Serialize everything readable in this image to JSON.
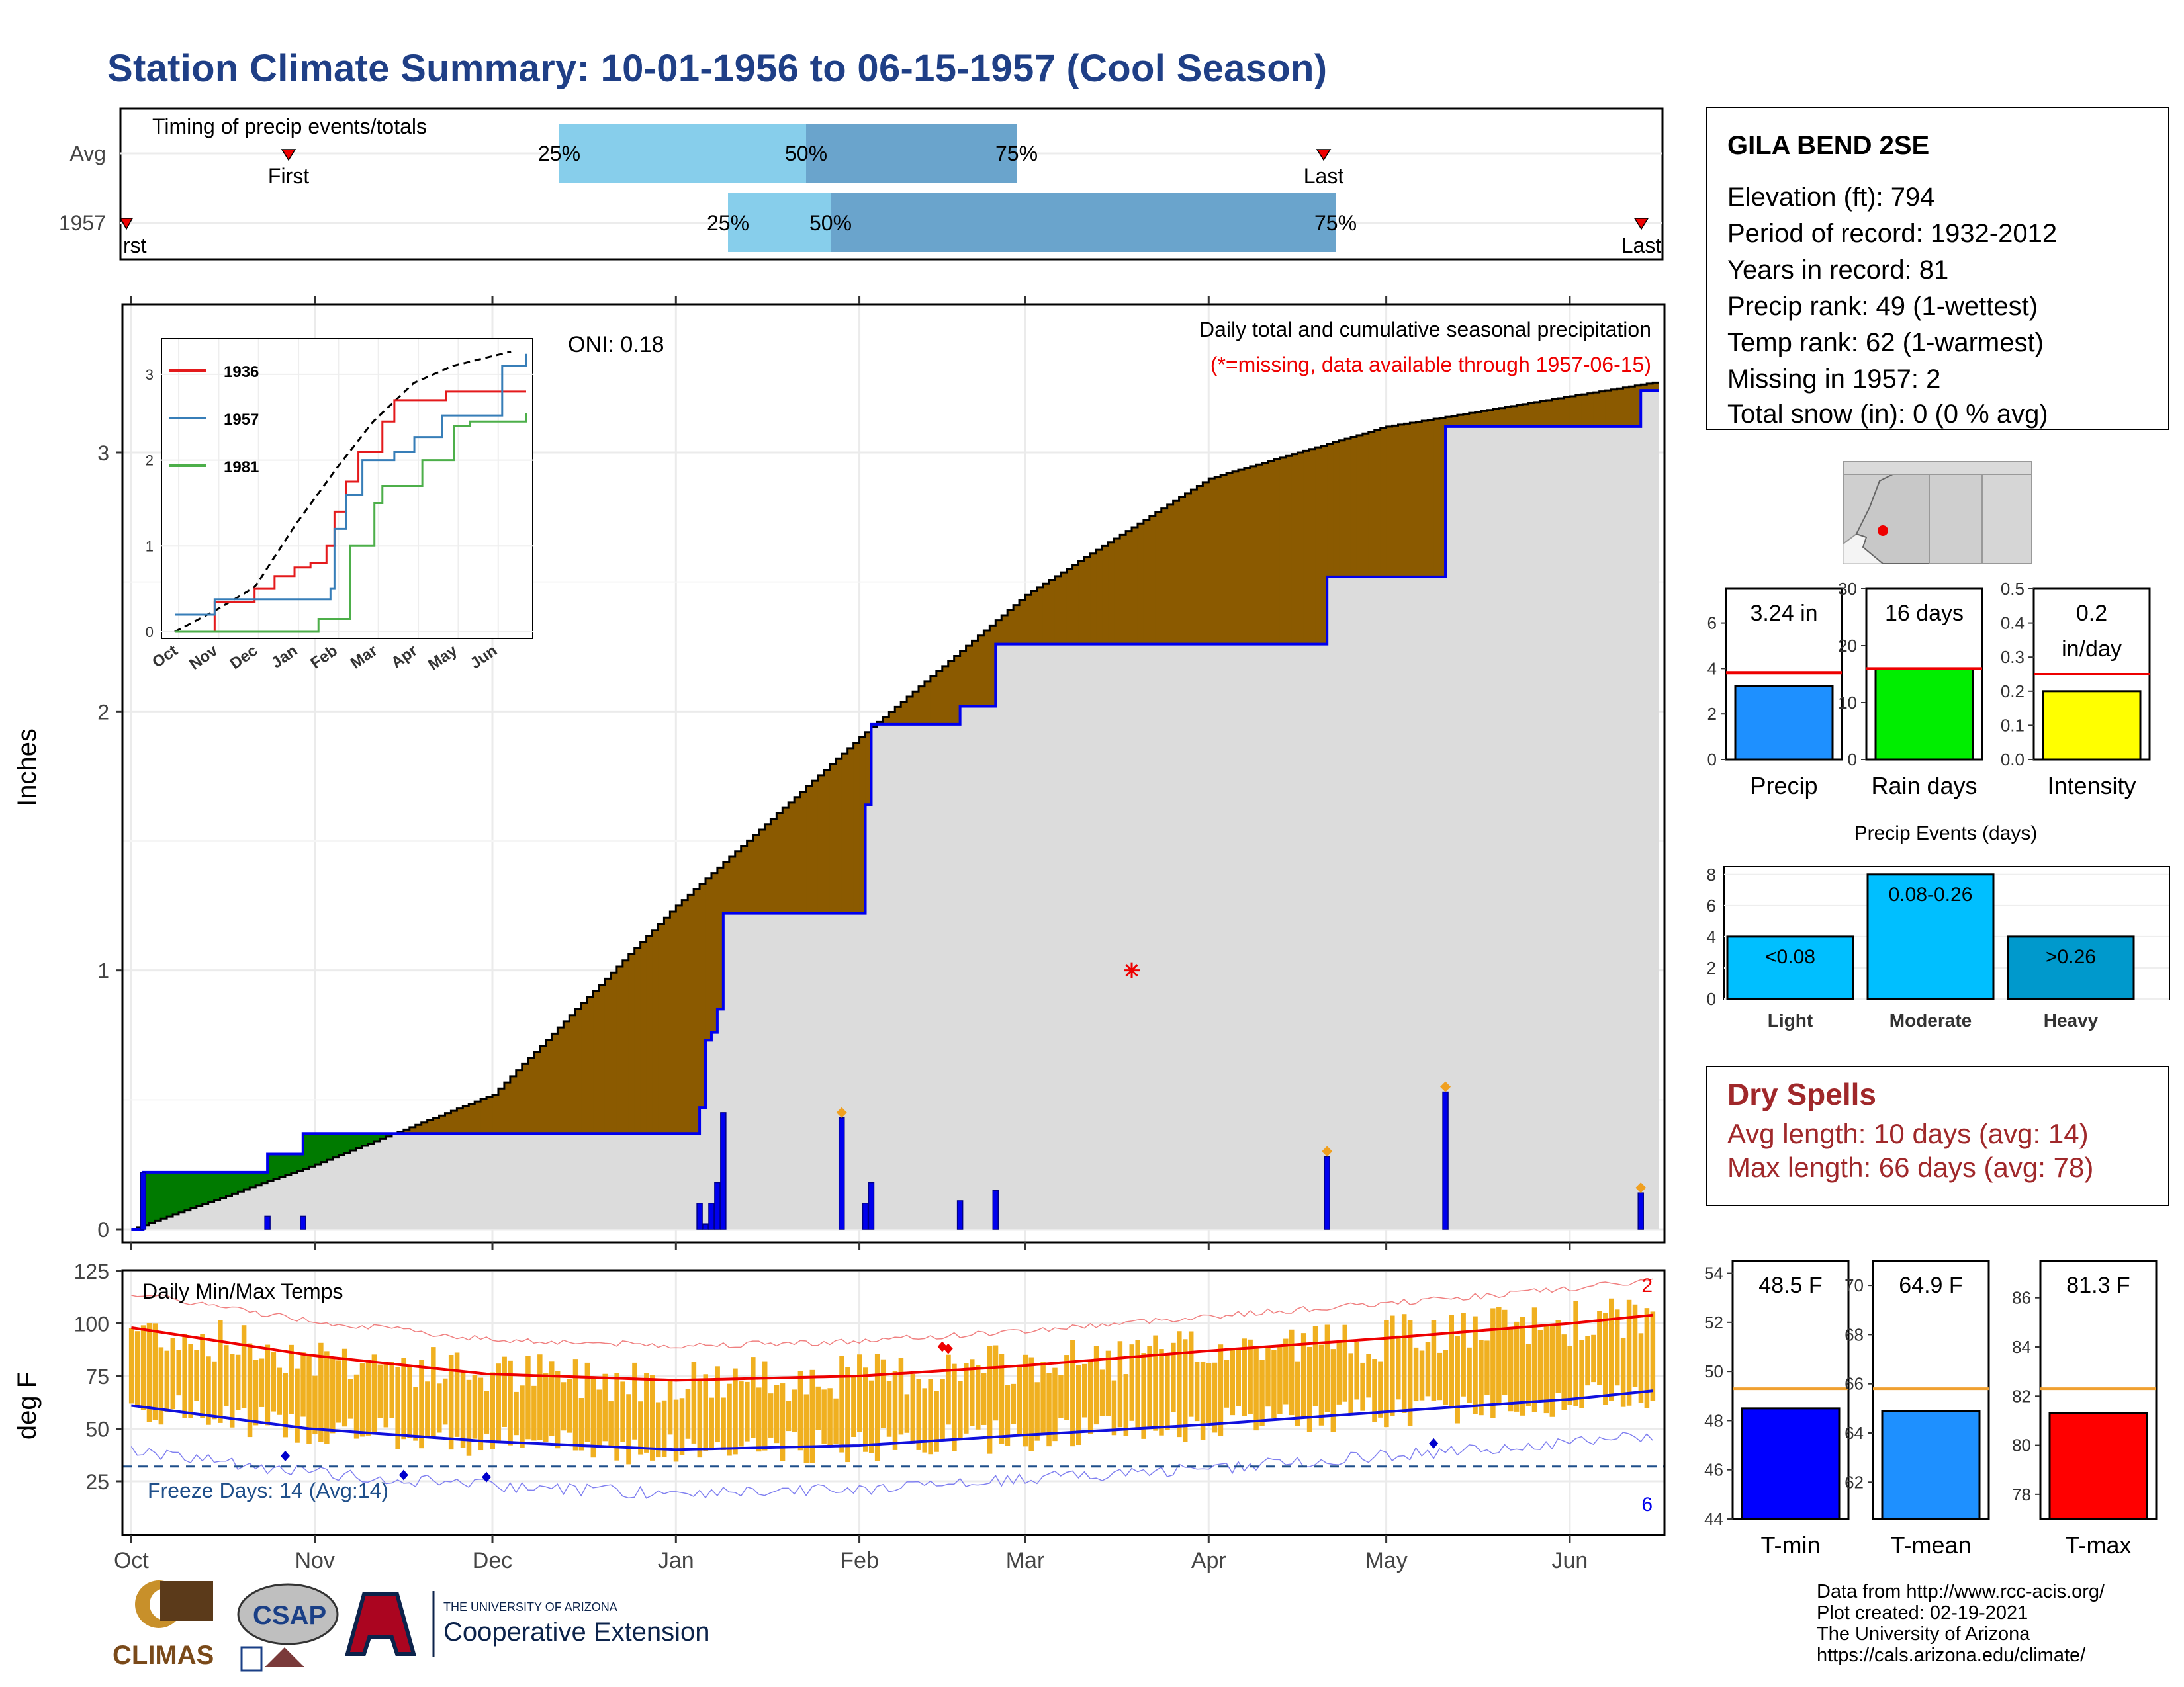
{
  "title": "Station Climate Summary: 10-01-1956 to 06-15-1957 (Cool Season)",
  "colors": {
    "title": "#1f3f86",
    "observed_fill": "#8b5a00",
    "surplus_fill": "#007a00",
    "avg_fill": "#dcdcdc",
    "observed_line": "#0000ee",
    "tmax": "#ee0000",
    "tmin": "#1010dd",
    "range_bar": "#f0b020",
    "missing": "#ee0000"
  },
  "station": {
    "name": "GILA BEND 2SE",
    "lines": [
      "Elevation (ft): 794",
      "Period of record: 1932-2012",
      "Years in record: 81",
      "Precip rank: 49 (1-wettest)",
      "Temp rank: 62 (1-warmest)",
      "Missing in 1957: 2",
      "Total snow (in): 0 (0 % avg)"
    ],
    "map_icon": "arizona-map-with-station-dot"
  },
  "timing": {
    "title": "Timing of precip events/totals",
    "rows": [
      "Avg",
      "1957"
    ],
    "pct_labels": [
      "25%",
      "50%",
      "75%"
    ],
    "first_label": "First",
    "last_label": "Last",
    "first_label_clipped": "rst"
  },
  "main_chart": {
    "ylabel": "Inches",
    "oni": "ONI: 0.18",
    "title": "Daily total and cumulative seasonal precipitation",
    "missing_note": "(*=missing, data available through 1957-06-15)",
    "yticks": [
      "0",
      "1",
      "2",
      "3"
    ],
    "month_ticks": [
      "Oct",
      "Nov",
      "Dec",
      "Jan",
      "Feb",
      "Mar",
      "Apr",
      "May",
      "Jun"
    ]
  },
  "inset": {
    "legend": [
      "1936",
      "1957",
      "1981"
    ],
    "yticks": [
      "0",
      "1",
      "2",
      "3"
    ],
    "xticks": [
      "Oct",
      "Nov",
      "Dec",
      "Jan",
      "Feb",
      "Mar",
      "Apr",
      "May",
      "Jun"
    ]
  },
  "bar_panels": {
    "precip": {
      "label": "Precip",
      "value_text": "3.24 in"
    },
    "rain_days": {
      "label": "Rain days",
      "value_text": "16 days"
    },
    "intensity": {
      "label": "Intensity",
      "value_text_1": "0.2",
      "value_text_2": "in/day"
    }
  },
  "events": {
    "title": "Precip Events (days)",
    "bars": [
      {
        "label": "Light",
        "range": "<0.08"
      },
      {
        "label": "Moderate",
        "range": "0.08-0.26"
      },
      {
        "label": "Heavy",
        "range": ">0.26"
      }
    ]
  },
  "dry_spells": {
    "title": "Dry Spells",
    "avg_line": "Avg length: 10 days (avg: 14)",
    "max_line": "Max length: 66 days (avg: 78)"
  },
  "temp_chart": {
    "title": "Daily Min/Max Temps",
    "ylabel": "deg F",
    "freeze": "Freeze Days: 14 (Avg:14)",
    "record_high_count": "2",
    "record_low_count": "6",
    "yticks": [
      "25",
      "50",
      "75",
      "100",
      "125"
    ]
  },
  "temp_panels": {
    "tmin": {
      "label": "T-min",
      "value_text": "48.5 F"
    },
    "tmean": {
      "label": "T-mean",
      "value_text": "64.9 F"
    },
    "tmax": {
      "label": "T-max",
      "value_text": "81.3 F"
    }
  },
  "credits": {
    "line1": "Data from http://www.rcc-acis.org/",
    "line2": "Plot created: 02-19-2021",
    "line3": "The University of Arizona",
    "line4": "https://cals.arizona.edu/climate/"
  },
  "logos": {
    "climas": "CLIMAS",
    "csap": "CSAP",
    "ua_line1": "THE UNIVERSITY OF ARIZONA",
    "ua_line2": "Cooperative Extension"
  },
  "chart_data": [
    {
      "type": "area",
      "title": "Daily total and cumulative seasonal precipitation",
      "ylabel": "Inches",
      "ylim": [
        0,
        3.5
      ],
      "xlim": [
        "1956-10-01",
        "1957-06-15"
      ],
      "series": [
        {
          "name": "1957",
          "x": [
            "1956-10-01",
            "1956-10-03",
            "1956-10-24",
            "1956-10-30",
            "1957-01-01",
            "1957-01-05",
            "1957-01-06",
            "1957-01-07",
            "1957-01-08",
            "1957-01-09",
            "1957-01-29",
            "1957-02-02",
            "1957-02-03",
            "1957-02-18",
            "1957-02-24",
            "1957-04-21",
            "1957-05-11",
            "1957-06-13",
            "1957-06-15"
          ],
          "values": [
            0.0,
            0.22,
            0.29,
            0.37,
            0.37,
            0.47,
            0.73,
            0.76,
            0.85,
            1.22,
            1.22,
            1.64,
            1.95,
            2.02,
            2.26,
            2.52,
            3.1,
            3.24,
            3.24
          ]
        },
        {
          "name": "Avg",
          "x": [
            "1956-10-01",
            "1956-11-01",
            "1956-12-01",
            "1957-01-01",
            "1957-02-01",
            "1957-03-01",
            "1957-04-01",
            "1957-05-01",
            "1957-06-15"
          ],
          "values": [
            0.0,
            0.25,
            0.52,
            1.25,
            1.9,
            2.45,
            2.9,
            3.1,
            3.27
          ]
        }
      ],
      "daily_bars": {
        "x": [
          "1956-10-03",
          "1956-10-24",
          "1956-10-30",
          "1957-01-05",
          "1957-01-06",
          "1957-01-07",
          "1957-01-08",
          "1957-01-09",
          "1957-01-29",
          "1957-02-02",
          "1957-02-03",
          "1957-02-18",
          "1957-02-24",
          "1957-04-21",
          "1957-05-11",
          "1957-06-13"
        ],
        "values": [
          0.22,
          0.05,
          0.05,
          0.1,
          0.02,
          0.1,
          0.18,
          0.45,
          0.43,
          0.1,
          0.18,
          0.11,
          0.15,
          0.28,
          0.53,
          0.14
        ]
      },
      "missing_marker": "1957-03-19"
    },
    {
      "type": "line",
      "title": "inset cumulative comparison",
      "ylim": [
        0,
        3.3
      ],
      "series": [
        {
          "name": "1936",
          "x": [
            0,
            1,
            2,
            2.5,
            3,
            3.4,
            3.8,
            4,
            4.3,
            4.6,
            5,
            5.2,
            5.5,
            6.2,
            6.8,
            8.8
          ],
          "values": [
            0,
            0.35,
            0.5,
            0.65,
            0.75,
            0.8,
            1.0,
            1.4,
            1.75,
            2.1,
            2.1,
            2.45,
            2.7,
            2.7,
            2.8,
            2.8
          ]
        },
        {
          "name": "1957",
          "x": [
            0,
            1.0,
            3.2,
            3.9,
            4.0,
            4.3,
            4.7,
            5.0,
            5.5,
            6.0,
            6.7,
            7.5,
            8.2,
            8.8
          ],
          "values": [
            0.2,
            0.38,
            0.38,
            0.5,
            1.2,
            1.6,
            2.0,
            2.0,
            2.1,
            2.27,
            2.52,
            2.52,
            3.1,
            3.24
          ]
        },
        {
          "name": "1981",
          "x": [
            0,
            3.5,
            3.6,
            4.2,
            4.4,
            4.6,
            5.0,
            5.2,
            5.9,
            6.2,
            6.5,
            7.0,
            7.4,
            8.2,
            8.8
          ],
          "values": [
            0,
            0,
            0.15,
            0.15,
            1.0,
            1.0,
            1.5,
            1.7,
            1.7,
            2.0,
            2.0,
            2.4,
            2.45,
            2.45,
            2.55
          ]
        }
      ]
    },
    {
      "type": "bar",
      "categories": [
        "Precip"
      ],
      "values": [
        3.24
      ],
      "avg": [
        3.8
      ],
      "ylim": [
        0,
        7.5
      ],
      "yticks": [
        "0",
        "2",
        "4",
        "6"
      ]
    },
    {
      "type": "bar",
      "categories": [
        "Rain days"
      ],
      "values": [
        16
      ],
      "avg": [
        16
      ],
      "ylim": [
        0,
        30
      ],
      "yticks": [
        "0",
        "10",
        "20",
        "30"
      ]
    },
    {
      "type": "bar",
      "categories": [
        "Intensity"
      ],
      "values": [
        0.2
      ],
      "avg": [
        0.25
      ],
      "ylim": [
        0,
        0.5
      ],
      "yticks": [
        "0.0",
        "0.1",
        "0.2",
        "0.3",
        "0.4",
        "0.5"
      ]
    },
    {
      "type": "bar",
      "title": "Precip Events (days)",
      "categories": [
        "Light",
        "Moderate",
        "Heavy"
      ],
      "values": [
        4,
        8,
        4
      ],
      "ylim": [
        0,
        8.5
      ],
      "yticks": [
        "0",
        "2",
        "4",
        "6",
        "8"
      ]
    },
    {
      "type": "line",
      "title": "Daily Min/Max Temps",
      "ylabel": "deg F",
      "ylim": [
        5,
        125
      ],
      "freeze_line": 32,
      "series": [
        {
          "name": "avg max",
          "x": [
            0,
            30,
            60,
            92,
            123,
            151,
            182,
            212,
            243,
            257
          ],
          "values": [
            98,
            85,
            76,
            73,
            75,
            80,
            87,
            93,
            100,
            104
          ]
        },
        {
          "name": "avg min",
          "x": [
            0,
            30,
            60,
            92,
            123,
            151,
            182,
            212,
            243,
            257
          ],
          "values": [
            61,
            50,
            44,
            40,
            42,
            47,
            52,
            58,
            64,
            68
          ]
        }
      ]
    },
    {
      "type": "bar",
      "categories": [
        "T-min"
      ],
      "values": [
        48.5
      ],
      "avg": [
        49.3
      ],
      "ylim": [
        44,
        54.5
      ],
      "yticks": [
        "44",
        "46",
        "48",
        "50",
        "52",
        "54"
      ]
    },
    {
      "type": "bar",
      "categories": [
        "T-mean"
      ],
      "values": [
        64.9
      ],
      "avg": [
        65.8
      ],
      "ylim": [
        60.5,
        71
      ],
      "yticks": [
        "62",
        "64",
        "66",
        "68",
        "70"
      ]
    },
    {
      "type": "bar",
      "categories": [
        "T-max"
      ],
      "values": [
        81.3
      ],
      "avg": [
        82.3
      ],
      "ylim": [
        77,
        87.5
      ],
      "yticks": [
        "78",
        "80",
        "82",
        "84",
        "86"
      ]
    }
  ]
}
